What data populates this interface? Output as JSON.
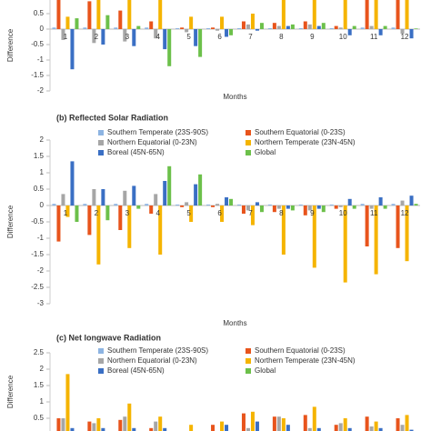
{
  "chart_data": [
    {
      "type": "bar",
      "ylabel": "Difference",
      "xlabel": "Months",
      "categories": [
        "1",
        "2",
        "3",
        "4",
        "5",
        "6",
        "7",
        "8",
        "9",
        "10",
        "11",
        "12"
      ],
      "ylim": [
        -2,
        1
      ],
      "yticks": [
        0.5,
        0,
        -0.5,
        -1,
        -1.5,
        -2
      ],
      "series": [
        {
          "color": "#8db4e2",
          "values": [
            0.05,
            0.05,
            0.05,
            0.05,
            0.03,
            0.03,
            0.03,
            0.03,
            0.03,
            0.03,
            0.05,
            0.05
          ]
        },
        {
          "color": "#e8541c",
          "values": [
            1.0,
            0.9,
            0.6,
            0.25,
            0.05,
            0.05,
            0.25,
            0.2,
            0.25,
            0.1,
            1.0,
            1.0
          ]
        },
        {
          "color": "#a6a6a6",
          "values": [
            -0.35,
            -0.45,
            -0.4,
            -0.3,
            -0.1,
            -0.05,
            0.15,
            0.1,
            0.15,
            0.05,
            0.1,
            -0.15
          ]
        },
        {
          "color": "#f5b400",
          "values": [
            0.4,
            1.0,
            1.0,
            1.0,
            0.4,
            0.4,
            0.5,
            1.0,
            1.0,
            1.0,
            1.0,
            1.0
          ]
        },
        {
          "color": "#3a6fc4",
          "values": [
            -1.3,
            -0.5,
            -0.55,
            -0.65,
            -0.55,
            -0.25,
            -0.05,
            0.1,
            0.1,
            -0.2,
            -0.2,
            -0.3
          ]
        },
        {
          "color": "#6cc04a",
          "values": [
            0.35,
            0.45,
            0.1,
            -1.2,
            -0.9,
            -0.2,
            0.2,
            0.15,
            0.2,
            0.1,
            0.1,
            0.02
          ]
        }
      ]
    },
    {
      "type": "bar",
      "title": "(b) Reflected Solar Radiation",
      "ylabel": "Difference",
      "xlabel": "Months",
      "categories": [
        "1",
        "2",
        "3",
        "4",
        "5",
        "6",
        "7",
        "8",
        "9",
        "10",
        "11",
        "12"
      ],
      "ylim": [
        -3,
        2
      ],
      "yticks": [
        2,
        1.5,
        1,
        0.5,
        0,
        -0.5,
        -1,
        -1.5,
        -2,
        -2.5,
        -3
      ],
      "series": [
        {
          "name": "Southern Temperate (23S-90S)",
          "color": "#8db4e2",
          "values": [
            0.05,
            0.05,
            0.05,
            0.05,
            0.03,
            0.03,
            0.03,
            0.03,
            0.03,
            0.03,
            0.05,
            0.05
          ]
        },
        {
          "name": "Southern Equatorial (0-23S)",
          "color": "#e8541c",
          "values": [
            -1.1,
            -0.9,
            -0.75,
            -0.25,
            -0.05,
            -0.05,
            -0.25,
            -0.2,
            -0.3,
            -0.1,
            -1.25,
            -1.3
          ]
        },
        {
          "name": "Northern Equatorial (0-23N)",
          "color": "#a6a6a6",
          "values": [
            0.35,
            0.5,
            0.45,
            0.35,
            0.1,
            0.05,
            -0.15,
            -0.1,
            -0.15,
            -0.05,
            -0.1,
            0.15
          ]
        },
        {
          "name": "Northern Temperate (23N-45N)",
          "color": "#f5b400",
          "values": [
            -0.35,
            -1.8,
            -1.3,
            -1.5,
            -0.5,
            -0.5,
            -0.6,
            -1.5,
            -1.9,
            -2.35,
            -2.1,
            -1.7
          ]
        },
        {
          "name": "Boreal (45N-65N)",
          "color": "#3a6fc4",
          "values": [
            1.35,
            0.5,
            0.6,
            0.75,
            0.65,
            0.25,
            0.1,
            -0.1,
            -0.1,
            0.2,
            0.25,
            0.3
          ]
        },
        {
          "name": "Global",
          "color": "#6cc04a",
          "values": [
            -0.5,
            -0.45,
            -0.1,
            1.2,
            0.95,
            0.2,
            -0.2,
            -0.15,
            -0.2,
            -0.1,
            -0.1,
            0.05
          ]
        }
      ]
    },
    {
      "type": "bar",
      "title": "(c) Net longwave Radiation",
      "ylabel": "Difference",
      "ylim": [
        0,
        2.5
      ],
      "yticks": [
        2.5,
        2,
        1.5,
        1,
        0.5
      ],
      "series": [
        {
          "name": "Southern Temperate (23S-90S)",
          "color": "#8db4e2",
          "values": [
            0.05,
            0.05,
            0.05,
            0.05,
            0.03,
            0.03,
            0.03,
            0.03,
            0.03,
            0.03,
            0.05,
            0.05
          ]
        },
        {
          "name": "Southern Equatorial (0-23S)",
          "color": "#e8541c",
          "values": [
            0.5,
            0.4,
            0.45,
            0.2,
            0.1,
            0.3,
            0.65,
            0.55,
            0.6,
            0.3,
            0.55,
            0.5
          ]
        },
        {
          "name": "Northern Equatorial (0-23N)",
          "color": "#a6a6a6",
          "values": [
            0.5,
            0.35,
            0.55,
            0.4,
            0.1,
            0.1,
            0.2,
            0.55,
            0.2,
            0.35,
            0.25,
            0.3
          ]
        },
        {
          "name": "Northern Temperate (23N-45N)",
          "color": "#f5b400",
          "values": [
            1.85,
            0.5,
            0.95,
            0.55,
            0.3,
            0.4,
            0.7,
            0.5,
            0.85,
            0.5,
            0.4,
            0.6
          ]
        },
        {
          "name": "Boreal (45N-65N)",
          "color": "#3a6fc4",
          "values": [
            0.2,
            0.2,
            0.2,
            0.2,
            0.1,
            0.3,
            0.4,
            0.3,
            0.2,
            0.2,
            0.2,
            0.15
          ]
        },
        {
          "name": "Global",
          "color": "#6cc04a",
          "values": [
            0.1,
            0.1,
            0.1,
            0.1,
            0.05,
            0.05,
            0.05,
            0.05,
            0.05,
            0.05,
            0.05,
            0.05
          ]
        }
      ]
    }
  ]
}
